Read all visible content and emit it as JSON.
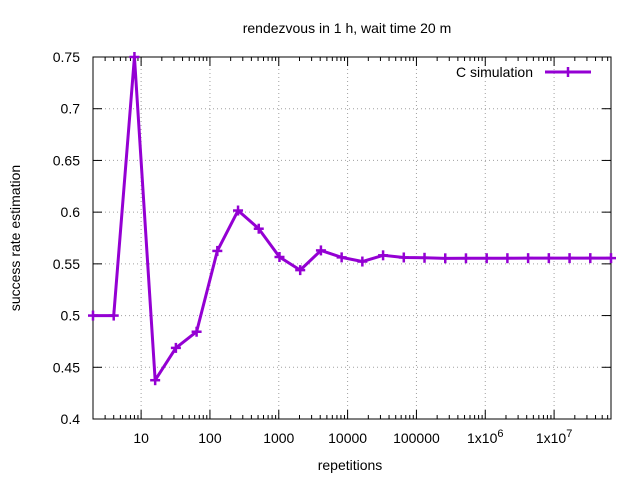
{
  "chart_data": {
    "type": "line",
    "title": "rendezvous in 1 h, wait time 20 m",
    "xlabel": "repetitions",
    "ylabel": "success rate estimation",
    "x_scale": "log",
    "xlim": [
      2,
      67108864
    ],
    "ylim": [
      0.4,
      0.75
    ],
    "grid": true,
    "legend_position": "top-right",
    "x_major_ticks": [
      {
        "value": 10,
        "base": "10",
        "exp": ""
      },
      {
        "value": 100,
        "base": "100",
        "exp": ""
      },
      {
        "value": 1000,
        "base": "1000",
        "exp": ""
      },
      {
        "value": 10000,
        "base": "10000",
        "exp": ""
      },
      {
        "value": 100000,
        "base": "100000",
        "exp": ""
      },
      {
        "value": 1000000,
        "base": "1x10",
        "exp": "6"
      },
      {
        "value": 10000000,
        "base": "1x10",
        "exp": "7"
      }
    ],
    "y_ticks": [
      "0.4",
      "0.45",
      "0.5",
      "0.55",
      "0.6",
      "0.65",
      "0.7",
      "0.75"
    ],
    "series": [
      {
        "name": "C simulation",
        "color": "#9400d3",
        "x": [
          2,
          4,
          8,
          16,
          32,
          64,
          128,
          256,
          512,
          1024,
          2048,
          4096,
          8192,
          16384,
          32768,
          65536,
          131072,
          262144,
          524288,
          1048576,
          2097152,
          4194304,
          8388608,
          16777216,
          33554432,
          67108864
        ],
        "y": [
          0.5,
          0.5,
          0.75,
          0.4375,
          0.46875,
          0.484375,
          0.5625,
          0.6015625,
          0.583984,
          0.556641,
          0.543945,
          0.562988,
          0.556274,
          0.552246,
          0.558258,
          0.556183,
          0.555862,
          0.555351,
          0.555374,
          0.555447,
          0.555477,
          0.555529,
          0.555534,
          0.555545,
          0.555548,
          0.555551
        ]
      }
    ]
  }
}
